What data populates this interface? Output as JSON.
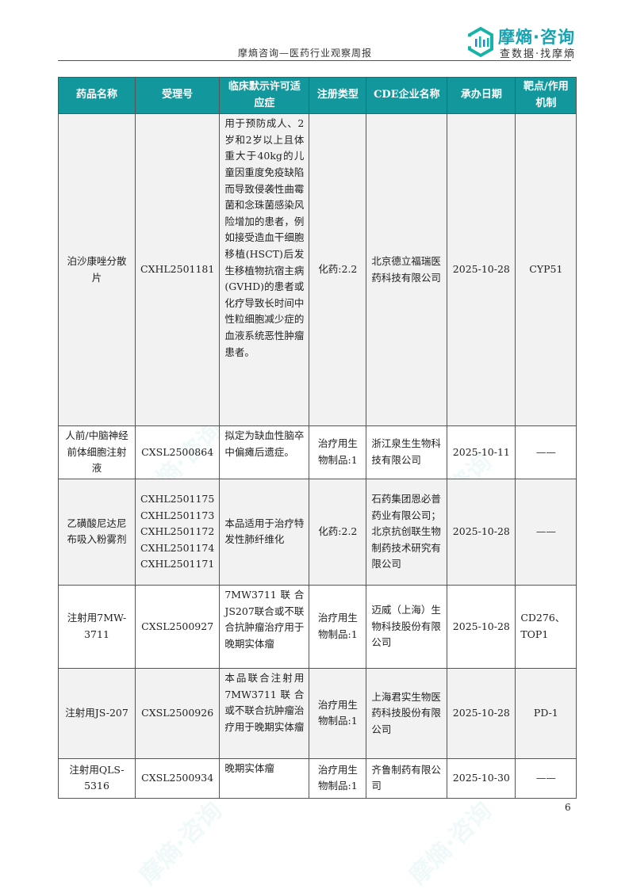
{
  "header": {
    "title": "摩熵咨询—医药行业观察周报",
    "logo_main": "摩熵·咨询",
    "logo_sub": "查数据·找摩熵",
    "watermark": "摩熵·咨询"
  },
  "colors": {
    "header_bg": "#11979c",
    "brand": "#17a2b0",
    "row_alt": "#f2f2f2"
  },
  "table": {
    "columns": [
      "药品名称",
      "受理号",
      "临床默示许可适应症",
      "注册类型",
      "CDE企业名称",
      "承办日期",
      "靶点/作用机制"
    ],
    "rows": [
      {
        "name": "泊沙康唑分散片",
        "id": "CXHL2501181",
        "indication": "用于预防成人、2岁和2岁以上且体重大于40kg的儿童因重度免疫缺陷而导致侵袭性曲霉菌和念珠菌感染风险增加的患者，例如接受造血干细胞移植(HSCT)后发生移植物抗宿主病(GVHD)的患者或化疗导致长时间中性粒细胞减少症的血液系统恶性肿瘤患者。",
        "type": "化药:2.2",
        "company": "北京德立福瑞医药科技有限公司",
        "date": "2025-10-28",
        "target": "CYP51"
      },
      {
        "name": "人前/中脑神经前体细胞注射液",
        "id": "CXSL2500864",
        "indication": "拟定为缺血性脑卒中偏瘫后遗症。",
        "type": "治疗用生物制品:1",
        "company": "浙江泉生生物科技有限公司",
        "date": "2025-10-11",
        "target": "——"
      },
      {
        "name": "乙磺酸尼达尼布吸入粉雾剂",
        "id": "CXHL2501175 CXHL2501173 CXHL2501172 CXHL2501174 CXHL2501171",
        "indication": "本品适用于治疗特发性肺纤维化",
        "type": "化药:2.2",
        "company": "石药集团恩必普药业有限公司；北京抗创联生物制药技术研究有限公司",
        "date": "2025-10-28",
        "target": "——"
      },
      {
        "name": "注射用7MW-3711",
        "id": "CXSL2500927",
        "indication": "7MW3711联合JS207联合或不联合抗肿瘤治疗用于晚期实体瘤",
        "type": "治疗用生物制品:1",
        "company": "迈威（上海）生物科技股份有限公司",
        "date": "2025-10-28",
        "target": "CD276、TOP1"
      },
      {
        "name": "注射用JS-207",
        "id": "CXSL2500926",
        "indication": "本品联合注射用7MW3711联合或不联合抗肿瘤治疗用于晚期实体瘤",
        "type": "治疗用生物制品:1",
        "company": "上海君实生物医药科技股份有限公司",
        "date": "2025-10-28",
        "target": "PD-1"
      },
      {
        "name": "注射用QLS-5316",
        "id": "CXSL2500934",
        "indication": "晚期实体瘤",
        "type": "治疗用生物制品:1",
        "company": "齐鲁制药有限公司",
        "date": "2025-10-30",
        "target": "——"
      }
    ]
  },
  "page_number": "6"
}
